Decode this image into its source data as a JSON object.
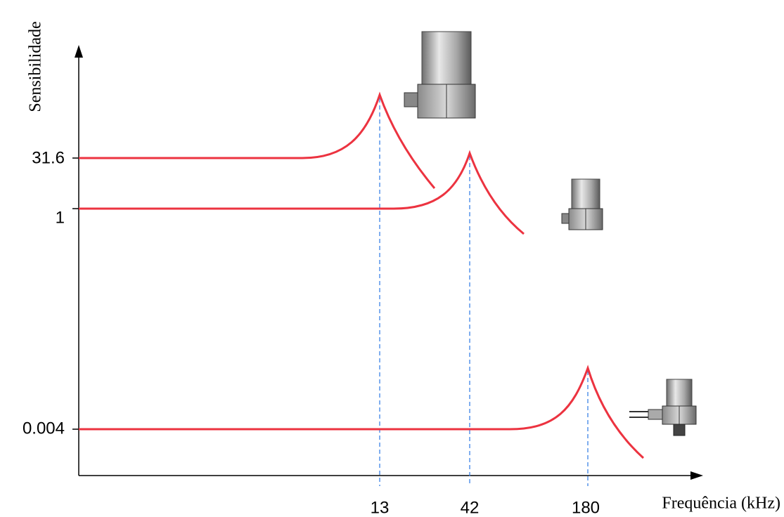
{
  "axes": {
    "y_label": "Sensibilidade",
    "x_label": "Frequência (kHz)"
  },
  "sensitivity_labels": [
    "31.6",
    "1",
    "0.004"
  ],
  "frequency_labels": [
    "13",
    "42",
    "180"
  ]
}
